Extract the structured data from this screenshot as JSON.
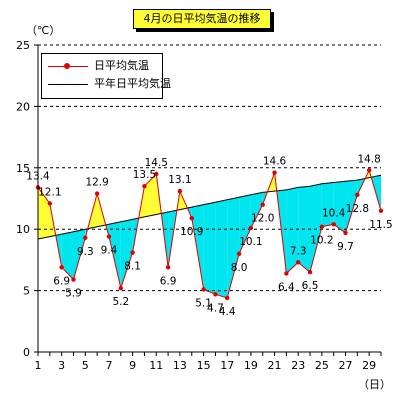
{
  "title": "4月の日平均気温の推移",
  "y_unit": "（℃）",
  "x_unit": "（日）",
  "colors": {
    "daily_line": "#e00000",
    "normal_line": "#000000",
    "above_fill": "#ffff33",
    "below_fill": "#00e5ee",
    "grid": "#000000"
  },
  "chart_data": {
    "type": "line",
    "title": "4月の日平均気温の推移",
    "ylabel": "（℃）",
    "xlabel": "（日）",
    "ylim": [
      0,
      25
    ],
    "yticks": [
      0,
      5,
      10,
      15,
      20,
      25
    ],
    "xlim": [
      1,
      30
    ],
    "xticks": [
      1,
      3,
      5,
      7,
      9,
      11,
      13,
      15,
      17,
      19,
      21,
      23,
      25,
      27,
      29
    ],
    "grid": "horizontal dashed",
    "legend_position": "top-left",
    "x": [
      1,
      2,
      3,
      4,
      5,
      6,
      7,
      8,
      9,
      10,
      11,
      12,
      13,
      14,
      15,
      16,
      17,
      18,
      19,
      20,
      21,
      22,
      23,
      24,
      25,
      26,
      27,
      28,
      29,
      30
    ],
    "series": [
      {
        "name": "日平均気温",
        "values": [
          13.4,
          12.1,
          6.9,
          5.9,
          9.3,
          12.9,
          9.4,
          5.2,
          8.1,
          13.5,
          14.5,
          6.9,
          13.1,
          10.9,
          5.1,
          4.7,
          4.4,
          8.0,
          10.1,
          12.0,
          14.6,
          6.4,
          7.3,
          6.5,
          10.2,
          10.4,
          9.7,
          12.8,
          14.8,
          11.5
        ]
      },
      {
        "name": "平年日平均気温",
        "values": [
          9.2,
          9.4,
          9.6,
          9.8,
          10.0,
          10.2,
          10.4,
          10.6,
          10.8,
          11.0,
          11.2,
          11.4,
          11.6,
          11.8,
          12.0,
          12.2,
          12.4,
          12.6,
          12.8,
          13.0,
          13.1,
          13.2,
          13.4,
          13.5,
          13.7,
          13.8,
          13.9,
          14.0,
          14.2,
          14.4
        ]
      }
    ],
    "data_labels": [
      "13.4",
      "12.1",
      "6.9",
      "5.9",
      "9.3",
      "12.9",
      "9.4",
      "5.2",
      "8.1",
      "13.5",
      "14.5",
      "6.9",
      "13.1",
      "10.9",
      "5.1",
      "4.7",
      "4.4",
      "8.0",
      "10.1",
      "12.0",
      "14.6",
      "6.4",
      "7.3",
      "6.5",
      "10.2",
      "10.4",
      "9.7",
      "12.8",
      "14.8",
      "11.5"
    ]
  }
}
